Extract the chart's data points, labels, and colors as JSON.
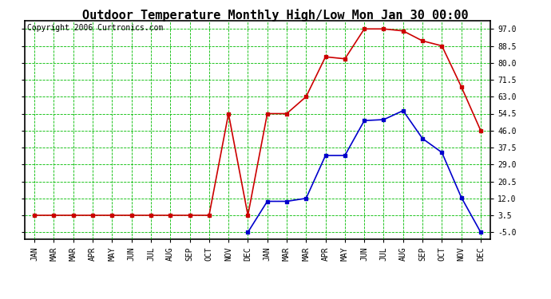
{
  "title": "Outdoor Temperature Monthly High/Low Mon Jan 30 00:00",
  "copyright": "Copyright 2006 Curtronics.com",
  "x_labels": [
    "JAN",
    "MAR",
    "MAR",
    "APR",
    "MAY",
    "JUN",
    "JUL",
    "AUG",
    "SEP",
    "OCT",
    "NOV",
    "DEC",
    "JAN",
    "MAR",
    "MAR",
    "APR",
    "MAY",
    "JUN",
    "JUL",
    "AUG",
    "SEP",
    "OCT",
    "NOV",
    "DEC"
  ],
  "high_x": [
    0,
    1,
    2,
    3,
    4,
    5,
    6,
    7,
    8,
    9,
    10,
    11,
    12,
    13,
    14,
    15,
    16,
    17,
    18,
    19,
    20,
    21,
    22,
    23
  ],
  "high_temps": [
    3.5,
    3.5,
    3.5,
    3.5,
    3.5,
    3.5,
    3.5,
    3.5,
    3.5,
    3.5,
    54.5,
    3.5,
    54.5,
    54.5,
    63.0,
    83.0,
    82.0,
    97.0,
    97.0,
    96.0,
    91.0,
    88.5,
    68.0,
    46.0
  ],
  "low_x": [
    11,
    12,
    13,
    14,
    15,
    16,
    17,
    18,
    19,
    20,
    21,
    22,
    23
  ],
  "low_temps": [
    -5.0,
    10.5,
    10.5,
    12.0,
    33.5,
    33.5,
    51.0,
    51.5,
    56.0,
    42.0,
    35.0,
    12.5,
    -5.0
  ],
  "high_color": "#cc0000",
  "low_color": "#0000cc",
  "grid_color": "#00bb00",
  "bg_color": "#ffffff",
  "plot_bg": "#ffffff",
  "border_color": "#000000",
  "ylim_min": -8.5,
  "ylim_max": 101.0,
  "yticks": [
    -5.0,
    3.5,
    12.0,
    20.5,
    29.0,
    37.5,
    46.0,
    54.5,
    63.0,
    71.5,
    80.0,
    88.5,
    97.0
  ],
  "ytick_labels": [
    "-5.0",
    "3.5",
    "12.0",
    "20.5",
    "29.0",
    "37.5",
    "46.0",
    "54.5",
    "63.0",
    "71.5",
    "80.0",
    "88.5",
    "97.0"
  ],
  "title_fontsize": 11,
  "copyright_fontsize": 7,
  "tick_fontsize": 7,
  "marker": "s",
  "marker_size": 3,
  "line_width": 1.2
}
